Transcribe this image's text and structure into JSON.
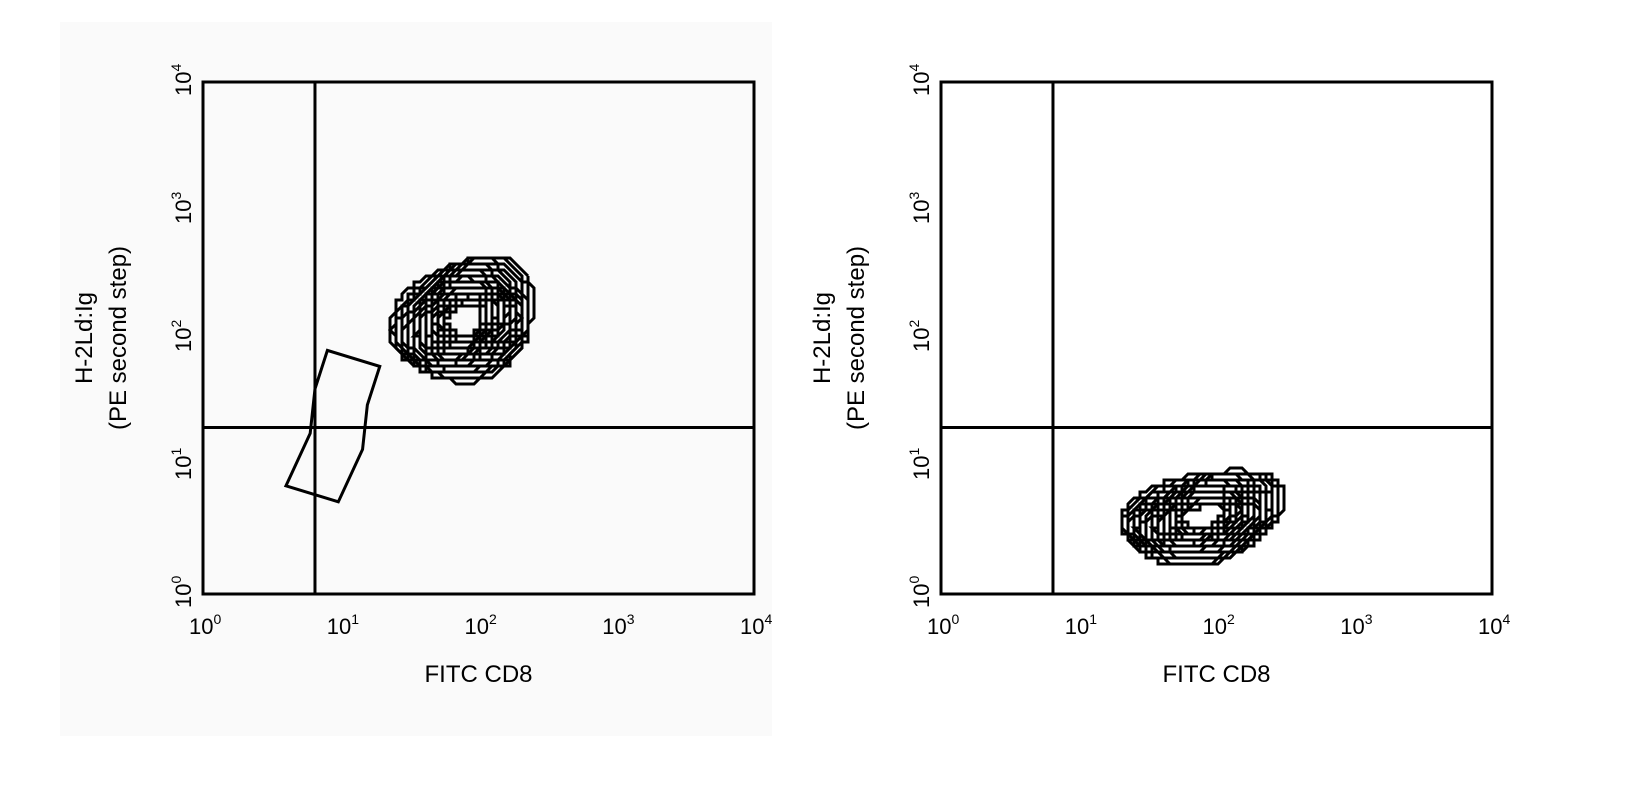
{
  "chart_data": [
    {
      "type": "contour",
      "x_scale": "log",
      "y_scale": "log",
      "xlim": [
        1,
        10000
      ],
      "ylim": [
        1,
        10000
      ],
      "x_ticks": [
        {
          "base": "10",
          "exp": "0"
        },
        {
          "base": "10",
          "exp": "1"
        },
        {
          "base": "10",
          "exp": "2"
        },
        {
          "base": "10",
          "exp": "3"
        },
        {
          "base": "10",
          "exp": "4"
        }
      ],
      "y_ticks": [
        {
          "base": "10",
          "exp": "0"
        },
        {
          "base": "10",
          "exp": "1"
        },
        {
          "base": "10",
          "exp": "2"
        },
        {
          "base": "10",
          "exp": "3"
        },
        {
          "base": "10",
          "exp": "4"
        }
      ],
      "xlabel": "FITC CD8",
      "ylabel_lines": [
        "H-2Ld:Ig",
        "(PE second step)"
      ],
      "quadrant_gate": {
        "x": 6.5,
        "y": 20
      },
      "population": {
        "center_x": 80,
        "center_y": 140,
        "spread_x": 0.55,
        "spread_y": 0.45,
        "tilt_deg": 35,
        "levels": 18
      },
      "tail": [
        [
          4,
          7
        ],
        [
          6,
          18
        ],
        [
          6.5,
          40
        ],
        [
          8,
          80
        ]
      ],
      "background": "#fafafa"
    },
    {
      "type": "contour",
      "x_scale": "log",
      "y_scale": "log",
      "xlim": [
        1,
        10000
      ],
      "ylim": [
        1,
        10000
      ],
      "x_ticks": [
        {
          "base": "10",
          "exp": "0"
        },
        {
          "base": "10",
          "exp": "1"
        },
        {
          "base": "10",
          "exp": "2"
        },
        {
          "base": "10",
          "exp": "3"
        },
        {
          "base": "10",
          "exp": "4"
        }
      ],
      "y_ticks": [
        {
          "base": "10",
          "exp": "0"
        },
        {
          "base": "10",
          "exp": "1"
        },
        {
          "base": "10",
          "exp": "2"
        },
        {
          "base": "10",
          "exp": "3"
        },
        {
          "base": "10",
          "exp": "4"
        }
      ],
      "xlabel": "FITC CD8",
      "ylabel_lines": [
        "H-2Ld:Ig",
        "(PE second step)"
      ],
      "quadrant_gate": {
        "x": 6.5,
        "y": 20
      },
      "population": {
        "center_x": 80,
        "center_y": 4,
        "spread_x": 0.6,
        "spread_y": 0.35,
        "tilt_deg": 15,
        "levels": 18
      },
      "background": "#ffffff"
    }
  ]
}
